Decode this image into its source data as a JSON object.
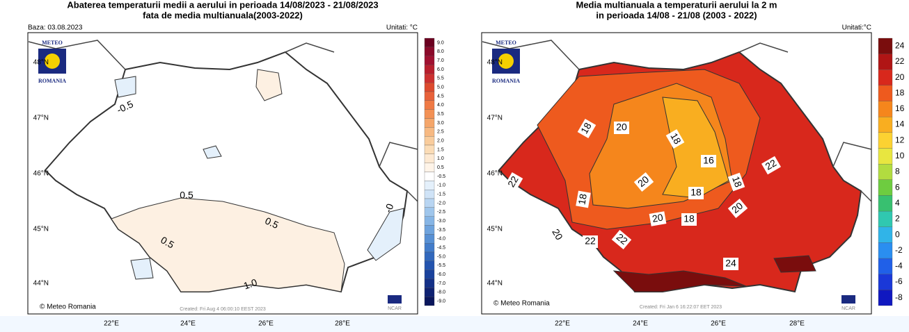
{
  "left": {
    "title_line1": "Abaterea temperaturii medii a aerului in perioada 14/08/2023 - 21/08/2023",
    "title_line2": "fata de media multianuala(2003-2022)",
    "base": "Baza: 03.08.2023",
    "units": "Unitati: °C",
    "logo_top": "METEO",
    "logo_bottom": "ROMANIA",
    "credit": "© Meteo Romania",
    "created": "Created: Fri Aug  4 06:00:10 EEST 2023",
    "ncar": "NCAR",
    "lat_labels": [
      "48°N",
      "47°N",
      "46°N",
      "45°N",
      "44°N"
    ],
    "lon_labels": [
      "22°E",
      "24°E",
      "26°E",
      "28°E"
    ],
    "contour_labels": [
      "-0.5",
      "0.5",
      "0.5",
      "0.5",
      "1.0",
      "-0"
    ],
    "legend": [
      {
        "label": "9.0",
        "color": "#6b0020"
      },
      {
        "label": "8.0",
        "color": "#8b0a2a"
      },
      {
        "label": "7.0",
        "color": "#a01030"
      },
      {
        "label": "6.0",
        "color": "#b81e2d"
      },
      {
        "label": "5.5",
        "color": "#cc3030"
      },
      {
        "label": "5.0",
        "color": "#dd4a2e"
      },
      {
        "label": "4.5",
        "color": "#e8623a"
      },
      {
        "label": "4.0",
        "color": "#ef7a45"
      },
      {
        "label": "3.5",
        "color": "#f39155"
      },
      {
        "label": "3.0",
        "color": "#f5a66a"
      },
      {
        "label": "2.5",
        "color": "#f7b982"
      },
      {
        "label": "2.0",
        "color": "#f9cc9c"
      },
      {
        "label": "1.5",
        "color": "#fbdcb6"
      },
      {
        "label": "1.0",
        "color": "#fde9d2"
      },
      {
        "label": "0.5",
        "color": "#fff4e8"
      },
      {
        "label": "-0.5",
        "color": "#ffffff"
      },
      {
        "label": "-1.0",
        "color": "#e4f0fb"
      },
      {
        "label": "-1.5",
        "color": "#cfe3f7"
      },
      {
        "label": "-2.0",
        "color": "#b8d5f2"
      },
      {
        "label": "-2.5",
        "color": "#9fc6ec"
      },
      {
        "label": "-3.0",
        "color": "#86b5e5"
      },
      {
        "label": "-3.5",
        "color": "#6ea3dd"
      },
      {
        "label": "-4.0",
        "color": "#5790d4"
      },
      {
        "label": "-4.5",
        "color": "#427cca"
      },
      {
        "label": "-5.0",
        "color": "#3168bd"
      },
      {
        "label": "-5.5",
        "color": "#2454ae"
      },
      {
        "label": "-6.0",
        "color": "#1a429c"
      },
      {
        "label": "-7.0",
        "color": "#143188"
      },
      {
        "label": "-8.0",
        "color": "#0f2272"
      },
      {
        "label": "-9.0",
        "color": "#0a165c"
      }
    ]
  },
  "right": {
    "title_line1": "Media multianuala a temperaturii aerului la 2 m",
    "title_line2": "in perioada 14/08 - 21/08 (2003 - 2022)",
    "units": "Unitati:°C",
    "logo_top": "METEO",
    "logo_bottom": "ROMANIA",
    "credit": "© Meteo Romania",
    "created": "Created: Fri Jan  6 16:22:07 EET 2023",
    "ncar": "NCAR",
    "lat_labels": [
      "48°N",
      "47°N",
      "46°N",
      "45°N",
      "44°N"
    ],
    "lon_labels": [
      "22°E",
      "24°E",
      "26°E",
      "28°E"
    ],
    "contour_labels": [
      "18",
      "20",
      "18",
      "16",
      "22",
      "22",
      "20",
      "18",
      "18",
      "18",
      "20",
      "20",
      "18",
      "20",
      "22",
      "22",
      "24"
    ],
    "legend": [
      {
        "label": "24",
        "color": "#7a0d0d"
      },
      {
        "label": "22",
        "color": "#b01515"
      },
      {
        "label": "20",
        "color": "#d8281c"
      },
      {
        "label": "18",
        "color": "#ee5a1e"
      },
      {
        "label": "16",
        "color": "#f5861c"
      },
      {
        "label": "14",
        "color": "#f9ae20"
      },
      {
        "label": "12",
        "color": "#fcd232"
      },
      {
        "label": "10",
        "color": "#e8e640"
      },
      {
        "label": "8",
        "color": "#b2dc40"
      },
      {
        "label": "6",
        "color": "#6ecc40"
      },
      {
        "label": "4",
        "color": "#38c070"
      },
      {
        "label": "2",
        "color": "#30c8b0"
      },
      {
        "label": "0",
        "color": "#30b4e8"
      },
      {
        "label": "-2",
        "color": "#2a8ef0"
      },
      {
        "label": "-4",
        "color": "#2060e8"
      },
      {
        "label": "-6",
        "color": "#1a38d8"
      },
      {
        "label": "-8",
        "color": "#1018c0"
      }
    ]
  }
}
